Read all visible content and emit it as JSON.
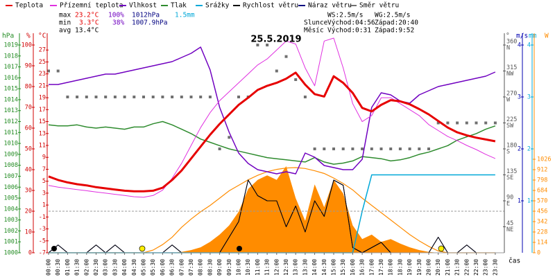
{
  "chart_data": {
    "type": "line",
    "title": "25.5.2019",
    "x_label": "čas",
    "x": [
      "00:00",
      "00:30",
      "01:00",
      "01:30",
      "02:00",
      "02:30",
      "03:00",
      "03:30",
      "04:00",
      "04:30",
      "05:00",
      "05:30",
      "06:00",
      "06:30",
      "07:00",
      "07:30",
      "08:00",
      "08:30",
      "09:00",
      "09:30",
      "10:00",
      "10:30",
      "11:00",
      "11:30",
      "12:00",
      "12:30",
      "13:00",
      "13:30",
      "14:00",
      "14:30",
      "15:00",
      "15:30",
      "16:00",
      "16:30",
      "17:00",
      "17:30",
      "18:00",
      "18:30",
      "19:00",
      "19:30",
      "20:00",
      "20:30",
      "21:00",
      "21:30",
      "22:00",
      "22:30",
      "23:00",
      "23:30"
    ],
    "axes": [
      {
        "label": "hPa",
        "color": "#228b22",
        "lim": [
          1000,
          1019
        ],
        "ticks": [
          1000,
          1001,
          1002,
          1003,
          1004,
          1005,
          1006,
          1007,
          1008,
          1009,
          1010,
          1011,
          1012,
          1013,
          1014,
          1015,
          1016,
          1017,
          1018,
          1019
        ]
      },
      {
        "label": "%",
        "color": "#d00000",
        "lim": [
          0,
          100
        ],
        "ticks": [
          0,
          10,
          20,
          30,
          40,
          50,
          60,
          70,
          80,
          90,
          100
        ]
      },
      {
        "label": "°C",
        "color": "#d00000",
        "lim": [
          -7,
          29
        ],
        "ticks": [
          -7,
          -5,
          -3,
          -1,
          1,
          3,
          5,
          7,
          9,
          11,
          13,
          15,
          17,
          19,
          21,
          23,
          25,
          27
        ]
      },
      {
        "label": "°",
        "color": "#555555",
        "lim": [
          0,
          360
        ],
        "ticks": [
          45,
          90,
          135,
          180,
          225,
          270,
          315,
          360
        ],
        "compass": [
          "NE",
          "E",
          "SE",
          "S",
          "SW",
          "W",
          "NW",
          "N"
        ]
      },
      {
        "label": "m/s",
        "color": "#0000b0",
        "lim": [
          0,
          4
        ],
        "ticks": [
          1,
          2,
          3,
          4
        ]
      },
      {
        "label": "mm",
        "color": "#00a8d8",
        "lim": [
          0,
          4
        ],
        "ticks": [
          1,
          2,
          3,
          4
        ]
      },
      {
        "label": "W",
        "color": "#ff8c00",
        "lim": [
          0,
          2280
        ],
        "ticks": [
          0,
          114,
          228,
          342,
          456,
          570,
          684,
          798,
          912,
          1026
        ]
      }
    ],
    "radiation": {
      "color": "#ff8c00",
      "axis": 6,
      "values": [
        0,
        0,
        0,
        0,
        0,
        0,
        0,
        0,
        0,
        0,
        0,
        0,
        0,
        0,
        10,
        30,
        60,
        120,
        200,
        300,
        450,
        700,
        800,
        850,
        800,
        950,
        600,
        350,
        750,
        500,
        800,
        650,
        300,
        150,
        200,
        120,
        150,
        100,
        60,
        30,
        10,
        0,
        0,
        0,
        0,
        0,
        0,
        0
      ]
    },
    "clear_sky": {
      "color": "#ff8c00",
      "axis": 6,
      "values": [
        0,
        0,
        0,
        0,
        0,
        0,
        0,
        0,
        0,
        0,
        0,
        30,
        90,
        170,
        280,
        370,
        450,
        520,
        600,
        680,
        740,
        800,
        850,
        890,
        915,
        930,
        935,
        925,
        900,
        870,
        820,
        760,
        690,
        600,
        520,
        440,
        360,
        280,
        200,
        130,
        70,
        20,
        0,
        0,
        0,
        0,
        0,
        0
      ]
    },
    "series": [
      {
        "name": "Teplota",
        "color": "#e60000",
        "axis": 2,
        "style": "line",
        "width": 3,
        "values": [
          5.8,
          5.2,
          4.8,
          4.5,
          4.3,
          4.0,
          3.8,
          3.6,
          3.4,
          3.3,
          3.3,
          3.4,
          3.9,
          5.2,
          6.8,
          8.8,
          10.8,
          12.8,
          14.6,
          16.2,
          17.8,
          19.0,
          20.3,
          21.0,
          21.5,
          22.2,
          23.2,
          21.2,
          19.6,
          19.2,
          22.6,
          21.5,
          19.8,
          17.3,
          16.7,
          17.8,
          18.6,
          18.4,
          17.9,
          17.1,
          16.2,
          15.1,
          14.0,
          13.2,
          12.7,
          12.3,
          12.0,
          11.7
        ]
      },
      {
        "name": "Přízemní teplota",
        "color": "#e030e0",
        "axis": 2,
        "style": "line",
        "width": 1,
        "values": [
          4.3,
          4.0,
          3.8,
          3.6,
          3.4,
          3.2,
          3.0,
          2.8,
          2.6,
          2.4,
          2.3,
          2.6,
          3.5,
          5.5,
          8.0,
          11.0,
          14.0,
          16.5,
          18.5,
          20.0,
          21.5,
          23.0,
          24.5,
          25.5,
          27.0,
          28.5,
          28.0,
          24.0,
          21.0,
          28.5,
          29.0,
          24.0,
          18.0,
          15.0,
          16.0,
          19.0,
          19.0,
          18.0,
          17.0,
          16.0,
          14.5,
          13.5,
          12.5,
          11.8,
          11.0,
          10.3,
          9.5,
          8.8
        ]
      },
      {
        "name": "Vlhkost",
        "color": "#7000c0",
        "axis": 1,
        "style": "line",
        "width": 1.5,
        "values": [
          81,
          81,
          82,
          83,
          84,
          85,
          86,
          86,
          87,
          88,
          89,
          90,
          91,
          92,
          94,
          96,
          99,
          88,
          70,
          58,
          48,
          43,
          40,
          39,
          38,
          39,
          38,
          48,
          46,
          42,
          41,
          40,
          40,
          45,
          70,
          77,
          76,
          73,
          72,
          76,
          78,
          80,
          81,
          82,
          83,
          84,
          85,
          87
        ]
      },
      {
        "name": "Tlak",
        "color": "#2e8b2e",
        "axis": 0,
        "style": "line",
        "width": 1.5,
        "values": [
          1011.7,
          1011.6,
          1011.6,
          1011.7,
          1011.5,
          1011.4,
          1011.5,
          1011.4,
          1011.3,
          1011.5,
          1011.5,
          1011.8,
          1012.0,
          1011.7,
          1011.3,
          1010.9,
          1010.4,
          1010.1,
          1009.8,
          1009.5,
          1009.3,
          1009.1,
          1008.9,
          1008.7,
          1008.6,
          1008.5,
          1008.4,
          1008.3,
          1008.7,
          1008.3,
          1008.1,
          1008.2,
          1008.4,
          1008.8,
          1008.7,
          1008.6,
          1008.4,
          1008.5,
          1008.7,
          1009.0,
          1009.2,
          1009.5,
          1009.8,
          1010.3,
          1010.6,
          1010.9,
          1011.3,
          1011.6
        ]
      },
      {
        "name": "Srážky",
        "color": "#00a8d8",
        "axis": 5,
        "style": "line",
        "width": 1.5,
        "values": [
          0,
          0,
          0,
          0,
          0,
          0,
          0,
          0,
          0,
          0,
          0,
          0,
          0,
          0,
          0,
          0,
          0,
          0,
          0,
          0,
          0,
          0,
          0,
          0,
          0,
          0,
          0,
          0,
          0,
          0,
          0,
          0,
          0,
          0.8,
          1.5,
          1.5,
          1.5,
          1.5,
          1.5,
          1.5,
          1.5,
          1.5,
          1.5,
          1.5,
          1.5,
          1.5,
          1.5,
          1.5
        ]
      },
      {
        "name": "Rychlost větru",
        "color": "#000000",
        "axis": 4,
        "style": "line",
        "width": 1,
        "values": [
          0,
          0.15,
          0,
          0,
          0,
          0.15,
          0,
          0.15,
          0,
          0,
          0,
          0,
          0,
          0.15,
          0,
          0,
          0,
          0,
          0,
          0.3,
          0.6,
          1.4,
          1.1,
          1.0,
          1.0,
          0.5,
          0.9,
          0.4,
          1.0,
          0.7,
          1.4,
          1.3,
          0.1,
          0,
          0.1,
          0.2,
          0,
          0,
          0,
          0,
          0,
          0.3,
          0,
          0,
          0.15,
          0,
          0,
          0
        ]
      },
      {
        "name": "Náraz větru",
        "color": "#000080",
        "axis": 4,
        "style": "line",
        "width": 1,
        "values": [
          0,
          0.15,
          0,
          0,
          0,
          0.15,
          0,
          0.15,
          0,
          0,
          0,
          0,
          0,
          0.15,
          0,
          0,
          0,
          0,
          0,
          0.3,
          0.6,
          1.4,
          1.1,
          1.0,
          1.0,
          0.5,
          0.9,
          0.4,
          1.0,
          0.7,
          1.4,
          1.3,
          0.1,
          0,
          0.1,
          0.2,
          0,
          0,
          0,
          0,
          0,
          0.3,
          0,
          0,
          0.15,
          0,
          0,
          0
        ]
      },
      {
        "name": "Směr větru",
        "color": "#707070",
        "axis": 3,
        "style": "points",
        "width": 1,
        "values": [
          315,
          315,
          270,
          270,
          270,
          270,
          270,
          270,
          270,
          270,
          270,
          270,
          270,
          270,
          270,
          270,
          270,
          270,
          180,
          200,
          270,
          270,
          360,
          360,
          315,
          340,
          300,
          270,
          180,
          180,
          180,
          180,
          180,
          180,
          180,
          180,
          180,
          180,
          180,
          180,
          180,
          225,
          225,
          225,
          225,
          225,
          225,
          225
        ]
      }
    ]
  },
  "stats": {
    "max": {
      "label": "max",
      "temp": "23.2°C",
      "hum": "100%",
      "press": "1012hPa",
      "rain": "1.5mm"
    },
    "min": {
      "label": "min",
      "temp": "3.3°C",
      "hum": "38%",
      "press": "1007.9hPa"
    },
    "avg": {
      "label": "avg",
      "temp": "13.4°C"
    }
  },
  "info": {
    "ws": "WS:2.5m/s",
    "wg": "WG:2.5m/s",
    "sun": "Slunce",
    "sun_rise": "Východ:04:56",
    "sun_set": "Západ:20:40",
    "moon": "Měsíc",
    "moon_rise": "Východ:0:31",
    "moon_set": "Západ:9:52"
  }
}
